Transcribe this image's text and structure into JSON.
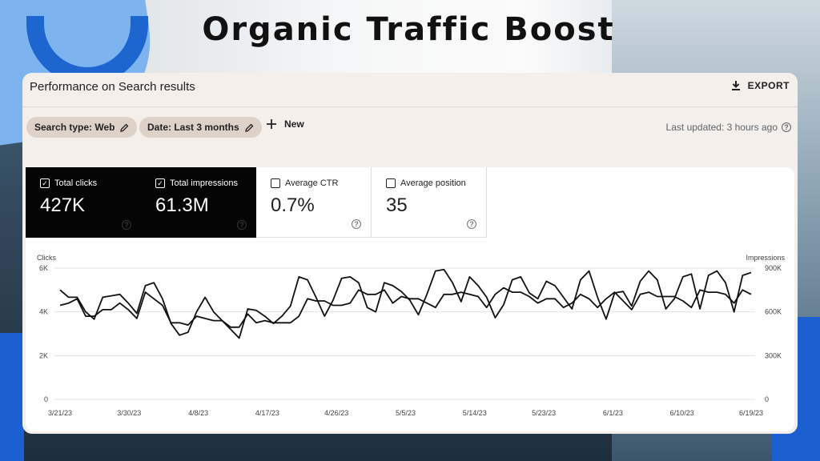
{
  "headline": "Organic Traffic Boost",
  "panel": {
    "title": "Performance on Search results",
    "export_label": "EXPORT"
  },
  "filters": {
    "search_type": "Search type: Web",
    "date": "Date: Last 3 months",
    "new_label": "New",
    "last_updated": "Last updated: 3 hours ago"
  },
  "metrics": [
    {
      "label": "Total clicks",
      "value": "427K",
      "checked": true
    },
    {
      "label": "Total impressions",
      "value": "61.3M",
      "checked": true
    },
    {
      "label": "Average CTR",
      "value": "0.7%",
      "checked": false
    },
    {
      "label": "Average position",
      "value": "35",
      "checked": false
    }
  ],
  "icons": {
    "export": "download-icon",
    "edit": "pencil-icon",
    "new": "plus-icon",
    "help": "question-circle-icon",
    "check": "checkbox-checked-icon"
  },
  "colors": {
    "panel_bg": "#f4efea",
    "chip_bg": "#ddd1c8",
    "dark_card": "#050505",
    "logo_blue": "#1d66cf"
  },
  "chart_data": {
    "type": "line",
    "ylabel_left": "Clicks",
    "ylabel_right": "Impressions",
    "y_left_ticks": [
      "0",
      "2K",
      "4K",
      "6K"
    ],
    "y_right_ticks": [
      "0",
      "300K",
      "600K",
      "900K"
    ],
    "ylim_left": [
      0,
      6000
    ],
    "ylim_right": [
      0,
      900000
    ],
    "x_ticks": [
      "3/21/23",
      "3/30/23",
      "4/8/23",
      "4/17/23",
      "4/26/23",
      "5/5/23",
      "5/14/23",
      "5/23/23",
      "6/1/23",
      "6/10/23",
      "6/19/23"
    ],
    "grid": true,
    "series": [
      {
        "name": "Clicks",
        "values": [
          4300,
          4400,
          4600,
          3800,
          3800,
          4100,
          4100,
          4400,
          4100,
          3700,
          4900,
          4600,
          4300,
          3500,
          3500,
          3400,
          3800,
          3700,
          3600,
          3600,
          3300,
          3300,
          3900,
          3500,
          3600,
          3500,
          3500,
          3500,
          3800,
          4600,
          4500,
          4500,
          4300,
          4300,
          4400,
          5000,
          4800,
          4800,
          5000,
          4400,
          4700,
          4600,
          4600,
          4400,
          4200,
          4800,
          4800,
          4900,
          4800,
          4700,
          4200,
          4800,
          5100,
          4900,
          4900,
          4700,
          4400,
          4600,
          4600,
          4200,
          4400,
          4800,
          4600,
          4200,
          4600,
          4900,
          4500,
          4100,
          4800,
          4900,
          4700,
          4700,
          4700,
          4500,
          4200,
          5000,
          4900,
          4900,
          4800,
          4400,
          5000,
          4800
        ]
      },
      {
        "name": "Impressions",
        "values": [
          750000,
          700000,
          700000,
          600000,
          550000,
          700000,
          710000,
          720000,
          660000,
          590000,
          780000,
          800000,
          690000,
          520000,
          440000,
          460000,
          600000,
          700000,
          600000,
          540000,
          480000,
          420000,
          620000,
          610000,
          570000,
          520000,
          570000,
          640000,
          840000,
          820000,
          700000,
          570000,
          680000,
          830000,
          840000,
          800000,
          630000,
          600000,
          800000,
          780000,
          740000,
          680000,
          580000,
          720000,
          880000,
          890000,
          800000,
          670000,
          840000,
          780000,
          700000,
          560000,
          650000,
          820000,
          840000,
          730000,
          690000,
          810000,
          780000,
          700000,
          620000,
          820000,
          880000,
          700000,
          550000,
          730000,
          740000,
          640000,
          810000,
          880000,
          820000,
          620000,
          690000,
          840000,
          860000,
          620000,
          850000,
          880000,
          800000,
          600000,
          850000,
          870000
        ]
      }
    ]
  }
}
